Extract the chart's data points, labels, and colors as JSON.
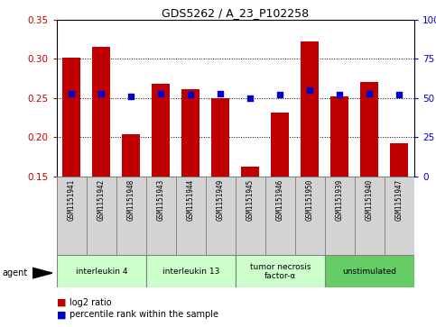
{
  "title": "GDS5262 / A_23_P102258",
  "samples": [
    "GSM1151941",
    "GSM1151942",
    "GSM1151948",
    "GSM1151943",
    "GSM1151944",
    "GSM1151949",
    "GSM1151945",
    "GSM1151946",
    "GSM1151950",
    "GSM1151939",
    "GSM1151940",
    "GSM1151947"
  ],
  "log2_ratio": [
    0.301,
    0.315,
    0.204,
    0.268,
    0.261,
    0.25,
    0.163,
    0.231,
    0.322,
    0.252,
    0.27,
    0.192
  ],
  "percentile_rank": [
    53,
    53,
    51,
    53,
    52,
    53,
    50,
    52,
    55,
    52,
    53,
    52
  ],
  "bar_bottom": 0.15,
  "ylim": [
    0.15,
    0.35
  ],
  "y2lim": [
    0,
    100
  ],
  "yticks_left": [
    0.15,
    0.2,
    0.25,
    0.3,
    0.35
  ],
  "yticks_right": [
    0,
    25,
    50,
    75,
    100
  ],
  "bar_color": "#C00000",
  "square_color": "#0000CC",
  "grid_color": "#000000",
  "groups": [
    {
      "label": "interleukin 4",
      "start": 0,
      "end": 3,
      "color": "#CCFFCC"
    },
    {
      "label": "interleukin 13",
      "start": 3,
      "end": 6,
      "color": "#CCFFCC"
    },
    {
      "label": "tumor necrosis\nfactor-α",
      "start": 6,
      "end": 9,
      "color": "#CCFFCC"
    },
    {
      "label": "unstimulated",
      "start": 9,
      "end": 12,
      "color": "#66CC66"
    }
  ],
  "legend_items": [
    {
      "label": "log2 ratio",
      "color": "#C00000"
    },
    {
      "label": "percentile rank within the sample",
      "color": "#0000CC"
    }
  ],
  "agent_label": "agent",
  "bar_width": 0.6,
  "figure_bg": "#FFFFFF",
  "sample_box_color": "#D3D3D3"
}
